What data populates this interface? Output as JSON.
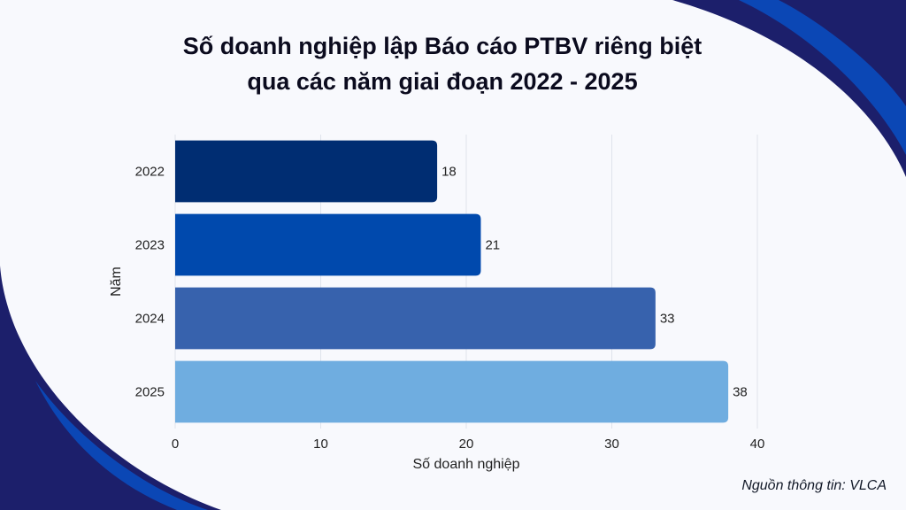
{
  "title_line1": "Số doanh nghiệp lập Báo cáo PTBV riêng biệt",
  "title_line2": "qua các năm giai đoạn 2022 - 2025",
  "source": "Nguồn thông tin: VLCA",
  "colors": {
    "background": "#f8f9fd",
    "decor_dark": "#1c1f6b",
    "decor_blue": "#0b47b5"
  },
  "chart_data": {
    "type": "bar",
    "orientation": "horizontal",
    "categories": [
      "2022",
      "2023",
      "2024",
      "2025"
    ],
    "values": [
      18,
      21,
      33,
      38
    ],
    "bar_colors": [
      "#002d72",
      "#0049ad",
      "#3762ad",
      "#6fade0"
    ],
    "xlabel": "Số doanh nghiệp",
    "ylabel": "Năm",
    "xlim": [
      0,
      40
    ],
    "xticks": [
      0,
      10,
      20,
      30,
      40
    ],
    "grid": "vertical",
    "data_labels": true
  }
}
